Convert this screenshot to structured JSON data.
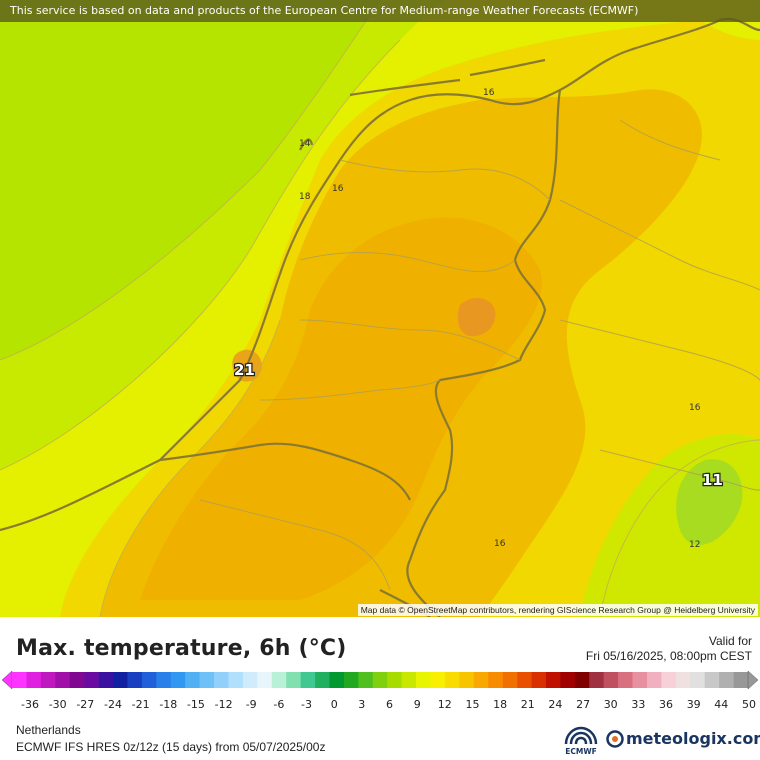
{
  "banner": {
    "text": "This service is based on data and products of the European Centre for Medium-range Weather Forecasts (ECMWF)"
  },
  "attribution": {
    "text": "Map data © OpenStreetMap contributors, rendering GIScience Research Group @ Heidelberg University"
  },
  "map": {
    "contour_labels": [
      {
        "id": "c14",
        "text": "14"
      },
      {
        "id": "c16a",
        "text": "16"
      },
      {
        "id": "c16b",
        "text": "16"
      },
      {
        "id": "c18",
        "text": "18"
      },
      {
        "id": "c16c",
        "text": "16"
      },
      {
        "id": "c16d",
        "text": "16"
      },
      {
        "id": "c12",
        "text": "12"
      }
    ],
    "extrema": [
      {
        "id": "max",
        "text": "21"
      },
      {
        "id": "min",
        "text": "11"
      }
    ],
    "colors": {
      "sea_green": "#b4e400",
      "land_yellow": "#f0d800",
      "warm_orange": "#f0b000",
      "hot_orange": "#e8a020",
      "cool_green": "#a8dc20"
    }
  },
  "title": {
    "text": "Max. temperature, 6h (°C)"
  },
  "valid": {
    "label": "Valid for",
    "time": "Fri 05/16/2025, 08:00pm CEST"
  },
  "legend": {
    "ticks": [
      "-36",
      "-30",
      "-27",
      "-24",
      "-21",
      "-18",
      "-15",
      "-12",
      "-9",
      "-6",
      "-3",
      "0",
      "3",
      "6",
      "9",
      "12",
      "15",
      "18",
      "21",
      "24",
      "27",
      "30",
      "33",
      "36",
      "39",
      "44",
      "50"
    ],
    "colors": [
      "#ff33ff",
      "#e020e0",
      "#c018c0",
      "#a010a8",
      "#800890",
      "#6a0aa0",
      "#3a10a0",
      "#1020a0",
      "#1840c0",
      "#2060d8",
      "#2880e8",
      "#3098f0",
      "#50b0f4",
      "#70c0f8",
      "#90d0fa",
      "#b0e0fc",
      "#d0ecfc",
      "#e8f6fc",
      "#b8f0d8",
      "#80e0b0",
      "#40c890",
      "#20b060",
      "#009830",
      "#20a820",
      "#50c020",
      "#80d010",
      "#a8dc00",
      "#c8e800",
      "#e8f400",
      "#f8f000",
      "#f8dc00",
      "#f8c400",
      "#f8a800",
      "#f88c00",
      "#f07000",
      "#e85000",
      "#d83000",
      "#c01000",
      "#a00000",
      "#800000",
      "#a03040",
      "#c05060",
      "#d87080",
      "#e890a0",
      "#f0b0c0",
      "#f8d0d8",
      "#f0e0e0",
      "#e0e0e0",
      "#c8c8c8",
      "#b0b0b0",
      "#989898"
    ]
  },
  "footer": {
    "region": "Netherlands",
    "model": "ECMWF IFS HRES 0z/12z (15 days) from  05/07/2025/00z",
    "ecmwf_label": "ECMWF",
    "brand": "meteologix.com"
  }
}
